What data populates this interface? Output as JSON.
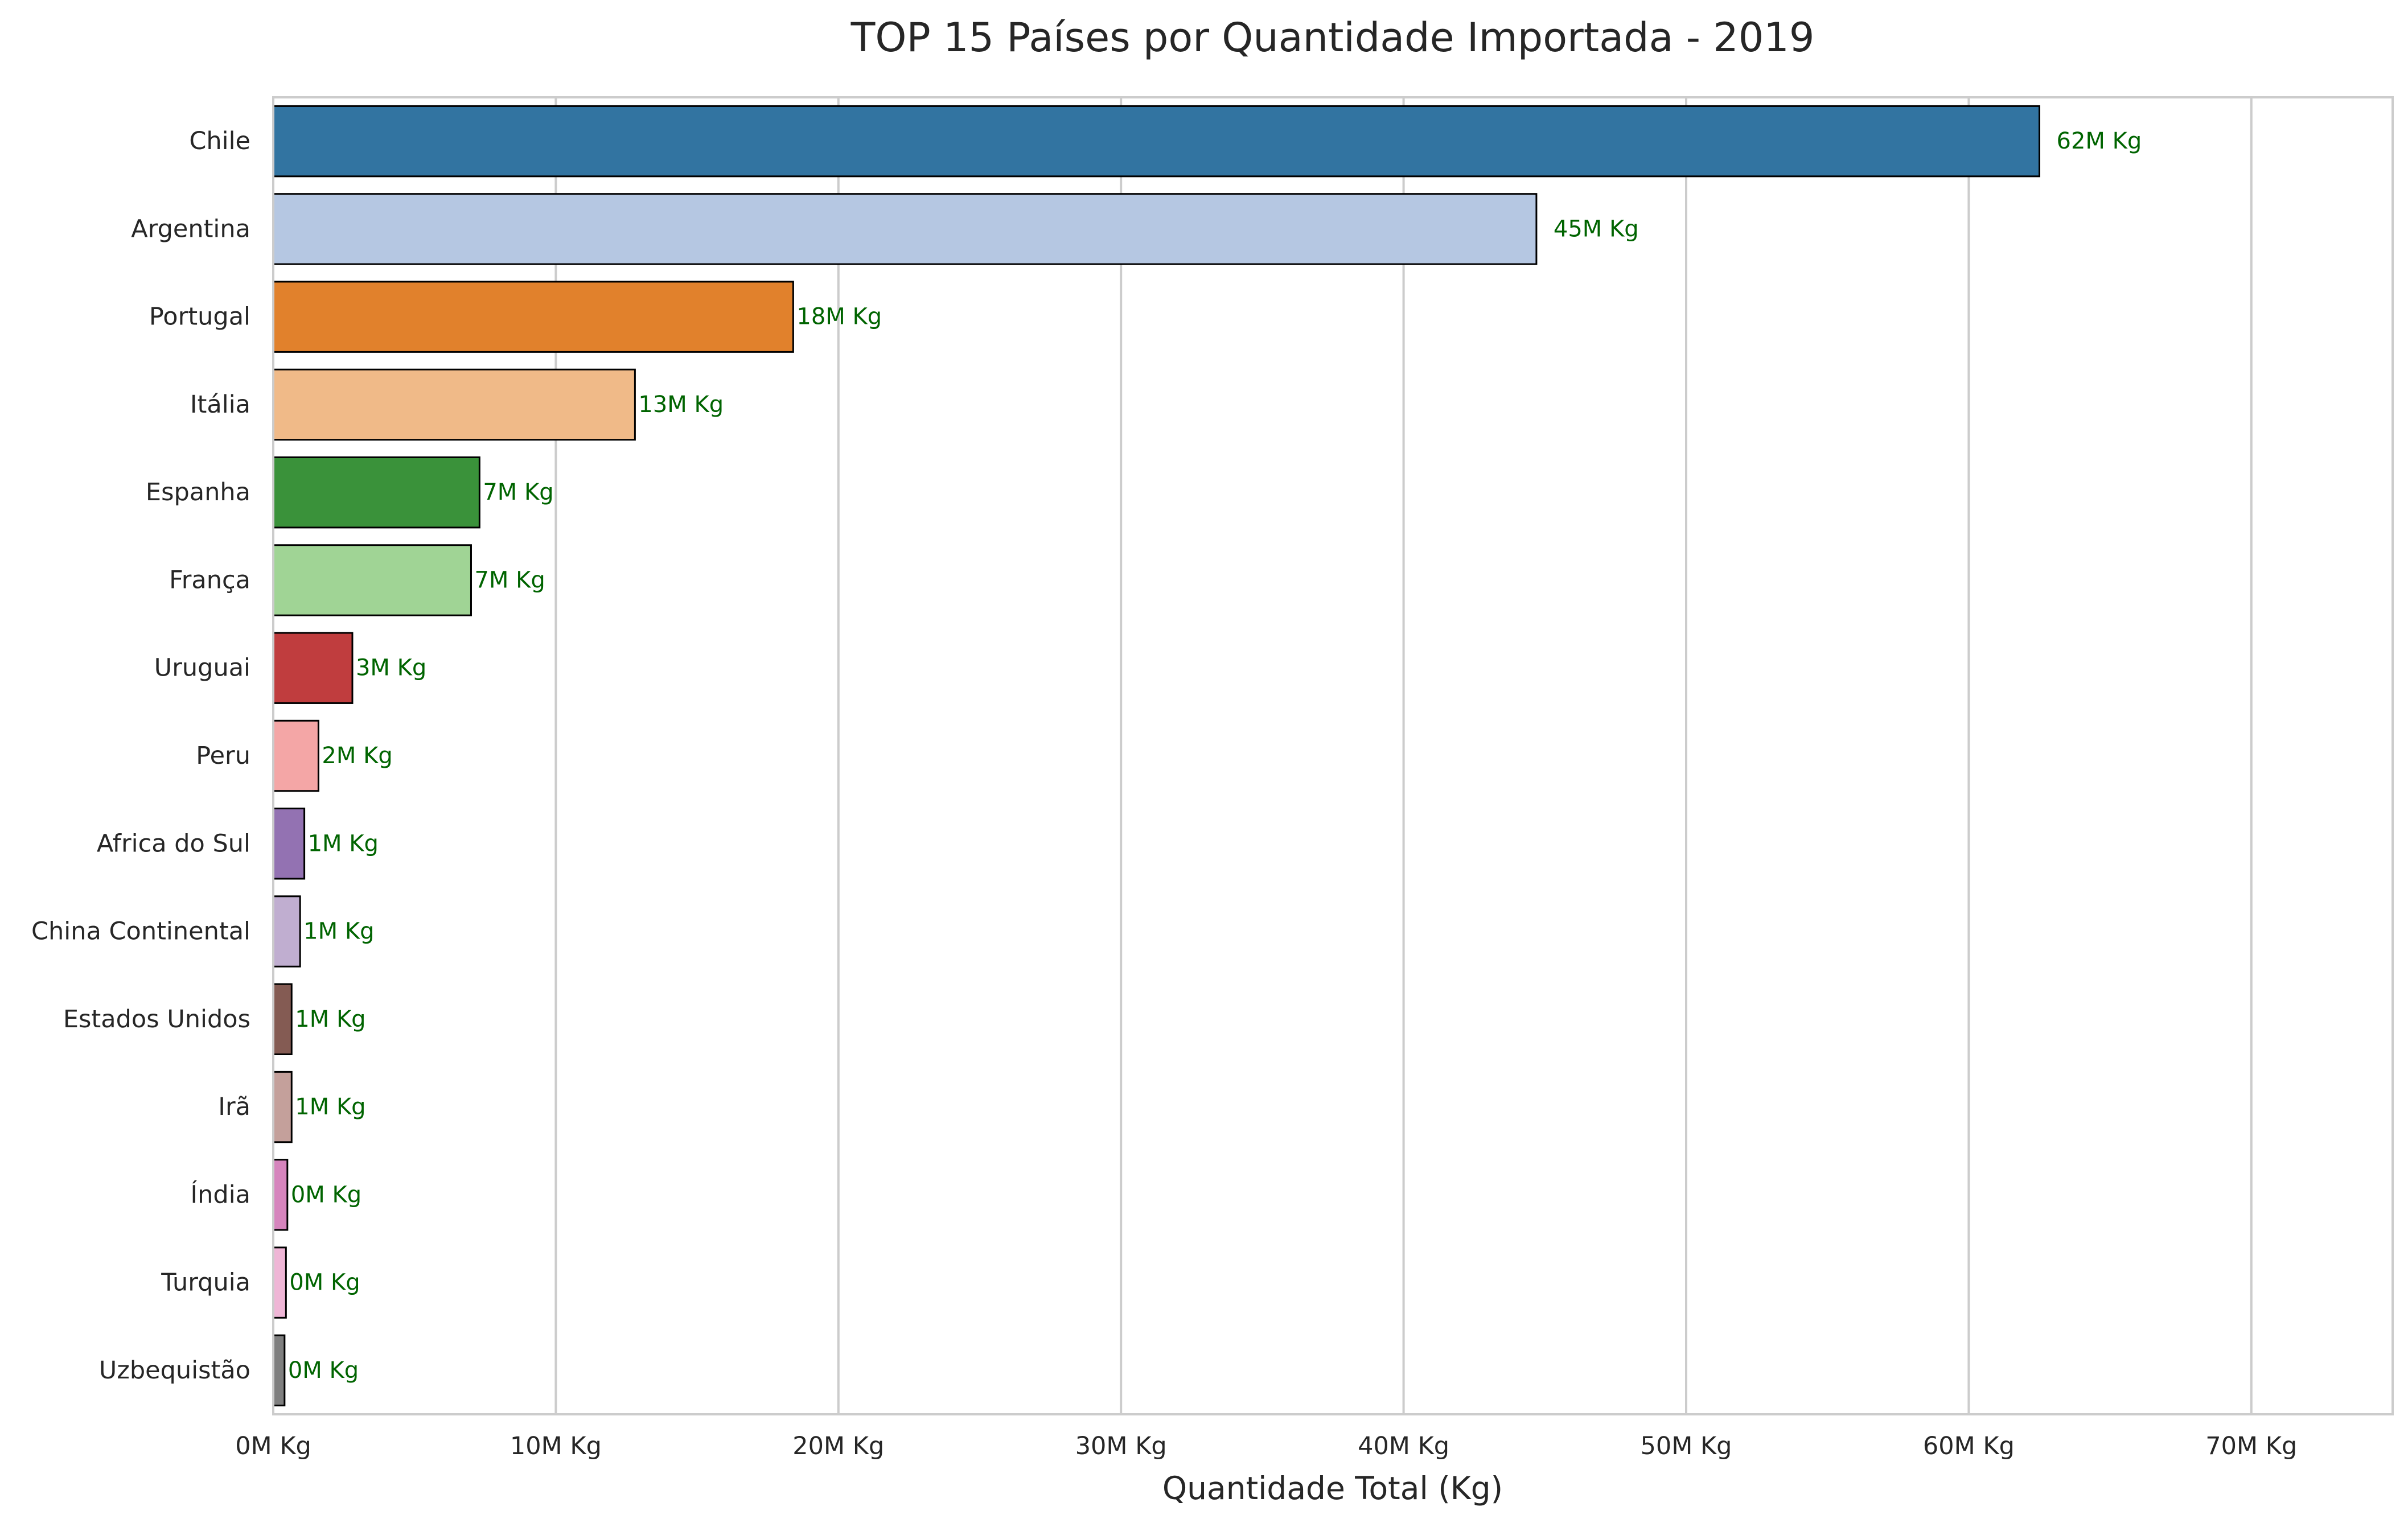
{
  "chart_data": {
    "type": "bar",
    "orientation": "horizontal",
    "title": "TOP 15 Países por Quantidade Importada - 2019",
    "xlabel": "Quantidade Total (Kg)",
    "ylabel": "",
    "xlim": [
      0,
      75000000
    ],
    "x_ticks": [
      0,
      10000000,
      20000000,
      30000000,
      40000000,
      50000000,
      60000000,
      70000000
    ],
    "x_tick_labels": [
      "0M Kg",
      "10M Kg",
      "20M Kg",
      "30M Kg",
      "40M Kg",
      "50M Kg",
      "60M Kg",
      "70M Kg"
    ],
    "grid": "vertical",
    "legend": "none",
    "categories": [
      "Chile",
      "Argentina",
      "Portugal",
      "Itália",
      "Espanha",
      "França",
      "Uruguai",
      "Peru",
      "Africa do Sul",
      "China Continental",
      "Estados Unidos",
      "Irã",
      "Índia",
      "Turquia",
      "Uzbequistão"
    ],
    "values": [
      62500000,
      44700000,
      18400000,
      12800000,
      7300000,
      7000000,
      2800000,
      1600000,
      1100000,
      950000,
      650000,
      650000,
      500000,
      450000,
      400000
    ],
    "data_labels": [
      "62M Kg",
      "45M Kg",
      "18M Kg",
      "13M Kg",
      "7M Kg",
      "7M Kg",
      "3M Kg",
      "2M Kg",
      "1M Kg",
      "1M Kg",
      "1M Kg",
      "1M Kg",
      "0M Kg",
      "0M Kg",
      "0M Kg"
    ],
    "colors": [
      "#3274a1",
      "#b5c7e2",
      "#e1812c",
      "#f0ba88",
      "#3a923a",
      "#a0d495",
      "#c03d3e",
      "#f4a6a6",
      "#9372b2",
      "#c0aed0",
      "#845b53",
      "#c4a09b",
      "#d684bd",
      "#efb6d6",
      "#7f7f7f"
    ]
  }
}
